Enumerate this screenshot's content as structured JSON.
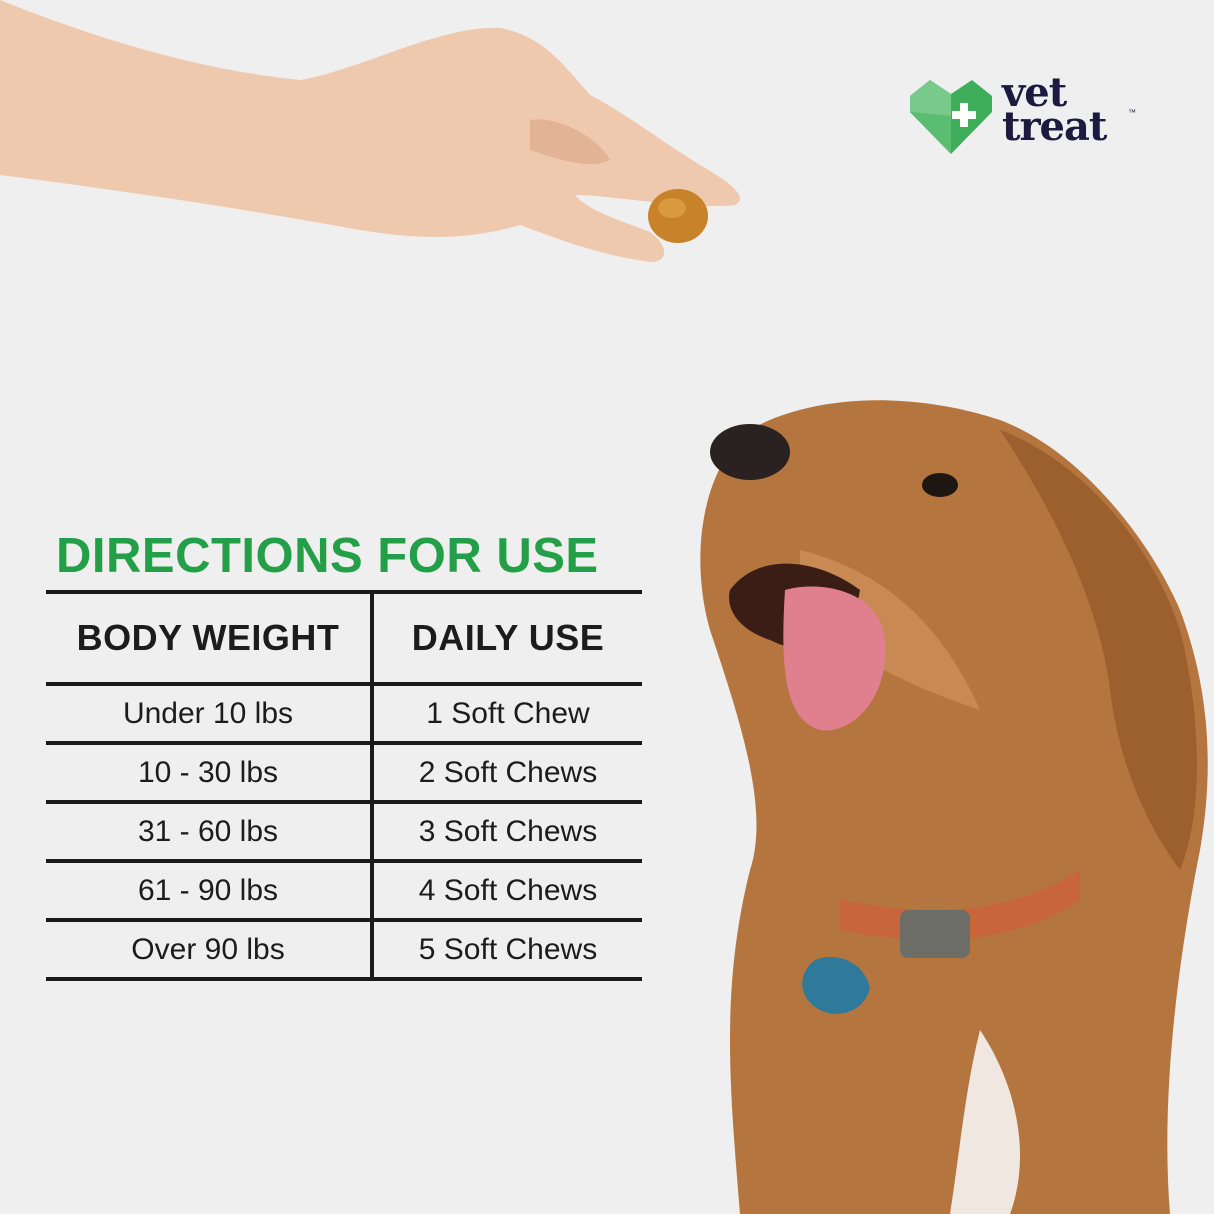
{
  "brand": {
    "name_line1": "vet",
    "name_line2": "treat",
    "trademark": "™",
    "colors": {
      "green": "#23a047",
      "navy": "#1c1a3f"
    }
  },
  "title": "DIRECTIONS FOR USE",
  "table": {
    "headers": [
      "BODY WEIGHT",
      "DAILY USE"
    ],
    "rows": [
      [
        "Under 10 lbs",
        "1 Soft Chew"
      ],
      [
        "10 - 30 lbs",
        "2 Soft Chews"
      ],
      [
        "31 - 60 lbs",
        "3 Soft Chews"
      ],
      [
        "61 - 90 lbs",
        "4 Soft Chews"
      ],
      [
        "Over 90 lbs",
        "5 Soft Chews"
      ]
    ]
  },
  "images": {
    "hand": "hand-holding-chew",
    "dog": "goldendoodle-looking-up"
  }
}
